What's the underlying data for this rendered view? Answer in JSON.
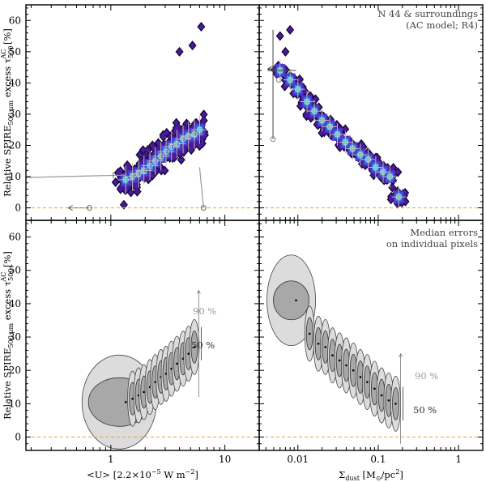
{
  "chart_data": [
    {
      "panel": "top-left",
      "type": "scatter",
      "style": "2D density histogram of pixels with binned medians and error crosses",
      "xscale": "log",
      "xlim": [
        0.18,
        20
      ],
      "xticks": [
        1,
        10
      ],
      "xtick_labels": [
        "",
        ""
      ],
      "ylim": [
        -4,
        65
      ],
      "yticks": [
        0,
        10,
        20,
        30,
        40,
        50,
        60
      ],
      "ytick_labels": [
        "0",
        "10",
        "20",
        "30",
        "40",
        "50",
        "60"
      ],
      "ylabel": "Relative SPIRE500 μm excess τ500^AC [%]",
      "baseline": 0,
      "binned_medians": {
        "x": [
          1.35,
          1.55,
          1.75,
          1.95,
          2.2,
          2.45,
          2.75,
          3.05,
          3.4,
          3.8,
          4.3,
          4.8,
          5.4,
          6.0
        ],
        "y": [
          9,
          10,
          11,
          12,
          13.5,
          15,
          16.5,
          18,
          19.5,
          20.5,
          22,
          23,
          23.5,
          25
        ]
      },
      "outliers": [
        {
          "x": 1.3,
          "y": 10.5,
          "xlo": 0.18,
          "xhi": 1.35
        },
        {
          "x": 0.65,
          "y": 0,
          "arrow": "left"
        },
        {
          "x": 6.5,
          "y": 0,
          "xlo": 5.5,
          "xhi": 7.5
        }
      ]
    },
    {
      "panel": "top-right",
      "type": "scatter",
      "style": "2D density histogram of pixels with binned medians and error crosses",
      "annotation": [
        "N 44 & surroundings",
        "(AC model; R4)"
      ],
      "xscale": "log",
      "xlim": [
        0.0033,
        2
      ],
      "xticks": [
        0.01,
        0.1,
        1
      ],
      "xtick_labels": [
        "",
        "",
        ""
      ],
      "ylim": [
        -4,
        65
      ],
      "baseline": 0,
      "binned_medians": {
        "x": [
          0.006,
          0.008,
          0.01,
          0.013,
          0.016,
          0.02,
          0.025,
          0.031,
          0.039,
          0.048,
          0.06,
          0.075,
          0.093,
          0.115,
          0.14,
          0.18
        ],
        "y": [
          44,
          41,
          38,
          34,
          31,
          28,
          26,
          23.5,
          21,
          19,
          17,
          15.5,
          13,
          11.5,
          10,
          3.5
        ]
      }
    },
    {
      "panel": "bottom-left",
      "type": "scatter",
      "style": "median error ellipses on individual pixels (inner 50%, outer 90%)",
      "xscale": "log",
      "xlim": [
        0.18,
        20
      ],
      "xticks": [
        1,
        10
      ],
      "xtick_labels": [
        "1",
        "10"
      ],
      "xlabel": "<U> [2.2×10^-5 W m^-2]",
      "ylim": [
        -4,
        65
      ],
      "yticks": [
        0,
        10,
        20,
        30,
        40,
        50,
        60
      ],
      "ytick_labels": [
        "0",
        "10",
        "20",
        "30",
        "40",
        "50",
        "60"
      ],
      "ylabel": "Relative SPIRE500 μm excess τ500^AC [%]",
      "baseline": 0,
      "x": [
        1.35,
        1.55,
        1.75,
        1.95,
        2.2,
        2.45,
        2.75,
        3.05,
        3.4,
        3.8,
        4.3,
        4.8,
        5.4
      ],
      "y": [
        10.5,
        11.5,
        12.5,
        13.5,
        15,
        16.5,
        18,
        19,
        20.5,
        22,
        23.5,
        25,
        27
      ],
      "label_90": "90 %",
      "label_50": "50 %"
    },
    {
      "panel": "bottom-right",
      "type": "scatter",
      "style": "median error ellipses on individual pixels (inner 50%, outer 90%)",
      "annotation": [
        "Median errors",
        "on individual pixels"
      ],
      "xscale": "log",
      "xlim": [
        0.0033,
        2
      ],
      "xticks": [
        0.01,
        0.1,
        1
      ],
      "xtick_labels": [
        "0.01",
        "0.1",
        "1"
      ],
      "xlabel": "Σdust [M⊙/pc²]",
      "ylim": [
        -4,
        65
      ],
      "baseline": 0,
      "x": [
        0.0095,
        0.014,
        0.018,
        0.022,
        0.027,
        0.033,
        0.04,
        0.049,
        0.06,
        0.073,
        0.09,
        0.11,
        0.135,
        0.165
      ],
      "y": [
        41,
        31,
        28,
        27,
        24.5,
        23,
        21.5,
        20,
        18,
        16.5,
        14.5,
        12.5,
        11,
        10
      ],
      "label_90": "90 %",
      "label_50": "50 %"
    }
  ]
}
